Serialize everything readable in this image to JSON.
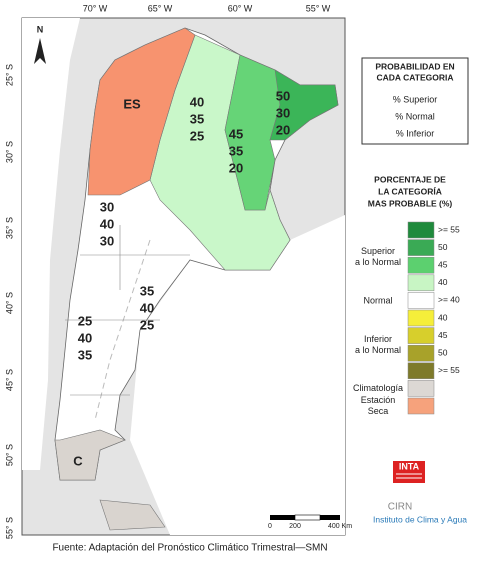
{
  "map": {
    "lon_labels": [
      "70° W",
      "65° W",
      "60° W",
      "55° W"
    ],
    "lat_labels": [
      "25° S",
      "30° S",
      "35° S",
      "40° S",
      "45° S",
      "50° S",
      "55° S"
    ],
    "north": "N",
    "regions": [
      {
        "label": "ES"
      },
      {
        "values": [
          40,
          35,
          25
        ]
      },
      {
        "values": [
          50,
          30,
          20
        ]
      },
      {
        "values": [
          45,
          35,
          20
        ]
      },
      {
        "values": [
          30,
          40,
          30
        ]
      },
      {
        "values": [
          35,
          40,
          25
        ]
      },
      {
        "values": [
          25,
          40,
          35
        ]
      },
      {
        "label": "C"
      }
    ],
    "scale": [
      "0",
      "200",
      "400 Km"
    ]
  },
  "probability_box": {
    "title": [
      "PROBABILIDAD EN",
      "CADA CATEGORIA"
    ],
    "items": [
      "% Superior",
      "% Normal",
      "% Inferior"
    ]
  },
  "color_legend": {
    "title": [
      "PORCENTAJE DE",
      "LA CATEGORÍA",
      "MAS PROBABLE (%)"
    ],
    "groups": [
      {
        "label": [
          "Superior",
          "a lo Normal"
        ],
        "entries": [
          {
            "label": ">= 55",
            "color": "#1f8a3c"
          },
          {
            "label": "50",
            "color": "#3aaa55"
          },
          {
            "label": "45",
            "color": "#5cd06f"
          },
          {
            "label": "40",
            "color": "#c8f5c4"
          }
        ]
      },
      {
        "label": [
          "Normal"
        ],
        "entries": [
          {
            "label": ">= 40",
            "color": "#ffffff"
          }
        ]
      },
      {
        "label": [
          "Inferior",
          "a lo Normal"
        ],
        "entries": [
          {
            "label": "40",
            "color": "#f5ee3a"
          },
          {
            "label": "45",
            "color": "#d7cf2c"
          },
          {
            "label": "50",
            "color": "#a8a22a"
          },
          {
            "label": ">= 55",
            "color": "#7e7a2a"
          }
        ]
      }
    ],
    "climatology": {
      "label": [
        "Climatología"
      ],
      "color": "#dcd8d4"
    },
    "dry": {
      "label": [
        "Estación",
        "Seca"
      ],
      "color": "#f6a27c"
    }
  },
  "logo": {
    "inta": "INTA",
    "cirn": "CIRN",
    "institute": "Instituto de Clima y Agua"
  },
  "footer": "Fuente: Adaptación del Pronóstico Climático Trimestral—SMN"
}
